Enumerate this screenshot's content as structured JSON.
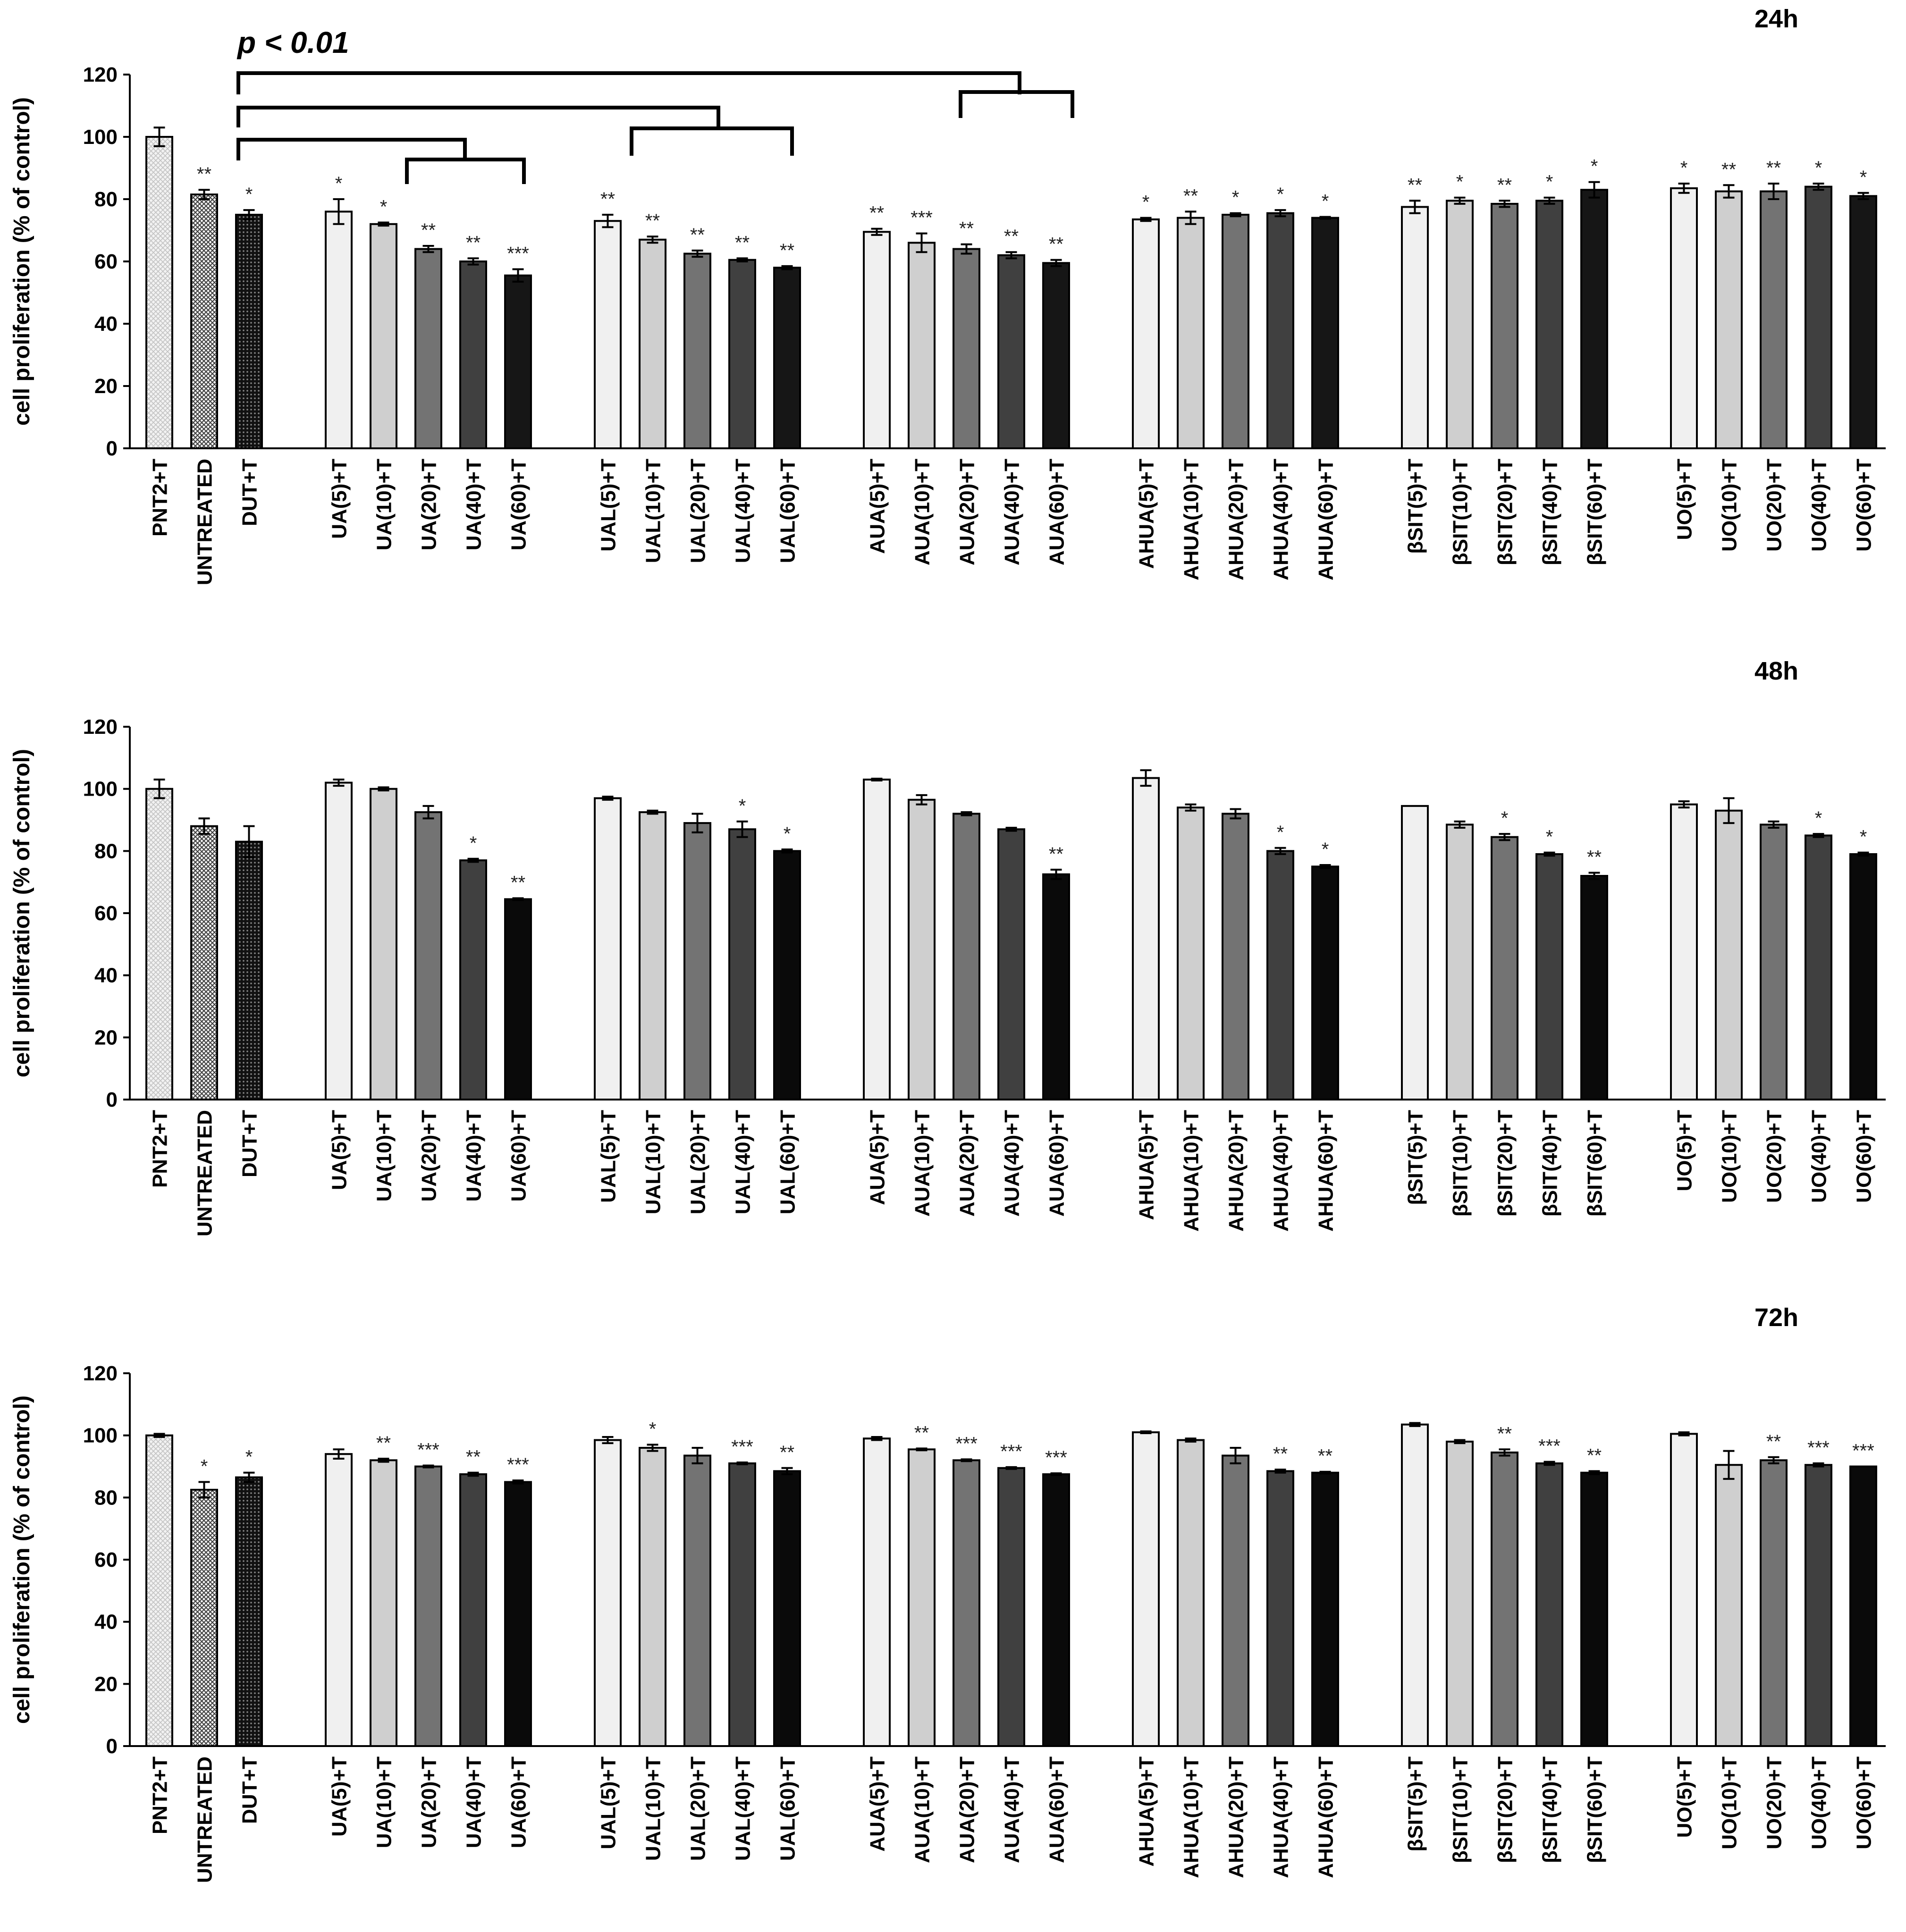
{
  "chart_data": [
    {
      "type": "bar",
      "title": "24h",
      "ylabel": "cell proliferation (% of control)",
      "ylim": [
        0,
        120
      ],
      "yticks": [
        "0",
        "20",
        "40",
        "60",
        "80",
        "100",
        "120"
      ],
      "categories": [
        "PNT2+T",
        "UNTREATED",
        "DUT+T",
        "UA(5)+T",
        "UA(10)+T",
        "UA(20)+T",
        "UA(40)+T",
        "UA(60)+T",
        "UAL(5)+T",
        "UAL(10)+T",
        "UAL(20)+T",
        "UAL(40)+T",
        "UAL(60)+T",
        "AUA(5)+T",
        "AUA(10)+T",
        "AUA(20)+T",
        "AUA(40)+T",
        "AUA(60)+T",
        "AHUA(5)+T",
        "AHUA(10)+T",
        "AHUA(20)+T",
        "AHUA(40)+T",
        "AHUA(60)+T",
        "βSIT(5)+T",
        "βSIT(10)+T",
        "βSIT(20)+T",
        "βSIT(40)+T",
        "βSIT(60)+T",
        "UO(5)+T",
        "UO(10)+T",
        "UO(20)+T",
        "UO(40)+T",
        "UO(60)+T"
      ],
      "values": [
        100,
        81.5,
        75,
        76,
        72,
        64,
        60,
        55.5,
        73,
        67,
        62.5,
        60.5,
        58,
        69.5,
        66,
        64,
        62,
        59.5,
        73.5,
        74,
        75,
        75.5,
        74,
        77.5,
        79.5,
        78.5,
        79.5,
        83,
        83.5,
        82.5,
        82.5,
        84,
        81
      ],
      "errors": [
        3,
        1.5,
        1.5,
        4,
        0.5,
        1,
        1,
        2,
        2,
        1,
        1,
        0.5,
        0.5,
        1,
        3,
        1.5,
        1,
        1,
        0.5,
        2,
        0.5,
        1,
        0.3,
        2,
        1,
        1,
        1,
        2.5,
        1.5,
        2,
        2.5,
        1,
        1
      ],
      "significance": [
        "",
        "**",
        "*",
        "*",
        "*",
        "**",
        "**",
        "***",
        "**",
        "**",
        "**",
        "**",
        "**",
        "**",
        "***",
        "**",
        "**",
        "**",
        "*",
        "**",
        "*",
        "*",
        "*",
        "**",
        "*",
        "**",
        "*",
        "*",
        "*",
        "**",
        "**",
        "*",
        "*"
      ],
      "annotation": "p < 0.01"
    },
    {
      "type": "bar",
      "title": "48h",
      "ylabel": "cell proliferation (% of control)",
      "ylim": [
        0,
        120
      ],
      "yticks": [
        "0",
        "20",
        "40",
        "60",
        "80",
        "100",
        "120"
      ],
      "categories": [
        "PNT2+T",
        "UNTREATED",
        "DUT+T",
        "UA(5)+T",
        "UA(10)+T",
        "UA(20)+T",
        "UA(40)+T",
        "UA(60)+T",
        "UAL(5)+T",
        "UAL(10)+T",
        "UAL(20)+T",
        "UAL(40)+T",
        "UAL(60)+T",
        "AUA(5)+T",
        "AUA(10)+T",
        "AUA(20)+T",
        "AUA(40)+T",
        "AUA(60)+T",
        "AHUA(5)+T",
        "AHUA(10)+T",
        "AHUA(20)+T",
        "AHUA(40)+T",
        "AHUA(60)+T",
        "βSIT(5)+T",
        "βSIT(10)+T",
        "βSIT(20)+T",
        "βSIT(40)+T",
        "βSIT(60)+T",
        "UO(5)+T",
        "UO(10)+T",
        "UO(20)+T",
        "UO(40)+T",
        "UO(60)+T"
      ],
      "values": [
        100,
        88,
        83,
        102,
        100,
        92.5,
        77,
        64.5,
        97,
        92.5,
        89,
        87,
        80,
        103,
        96.5,
        92,
        87,
        72.5,
        103.5,
        94,
        92,
        80,
        75,
        94.5,
        88.5,
        84.5,
        79,
        72,
        95,
        93,
        88.5,
        85,
        79
      ],
      "errors": [
        3,
        2.5,
        5,
        1,
        0.5,
        2,
        0.5,
        0.3,
        0.5,
        0.5,
        3,
        2.5,
        0.5,
        0.3,
        1.5,
        0.5,
        0.5,
        1.5,
        2.5,
        1,
        1.5,
        1,
        0.5,
        0,
        1,
        1,
        0.5,
        1,
        1,
        4,
        1,
        0.5,
        0.5
      ],
      "significance": [
        "",
        "",
        "",
        "",
        "",
        "",
        "*",
        "**",
        "",
        "",
        "",
        "*",
        "*",
        "",
        "",
        "",
        "",
        "**",
        "",
        "",
        "",
        "*",
        "*",
        "",
        "",
        "*",
        "*",
        "**",
        "",
        "",
        "",
        "*",
        "*"
      ]
    },
    {
      "type": "bar",
      "title": "72h",
      "ylabel": "cell proliferation (% of control)",
      "ylim": [
        0,
        120
      ],
      "yticks": [
        "0",
        "20",
        "40",
        "60",
        "80",
        "100",
        "120"
      ],
      "categories": [
        "PNT2+T",
        "UNTREATED",
        "DUT+T",
        "UA(5)+T",
        "UA(10)+T",
        "UA(20)+T",
        "UA(40)+T",
        "UA(60)+T",
        "UAL(5)+T",
        "UAL(10)+T",
        "UAL(20)+T",
        "UAL(40)+T",
        "UAL(60)+T",
        "AUA(5)+T",
        "AUA(10)+T",
        "AUA(20)+T",
        "AUA(40)+T",
        "AUA(60)+T",
        "AHUA(5)+T",
        "AHUA(10)+T",
        "AHUA(20)+T",
        "AHUA(40)+T",
        "AHUA(60)+T",
        "βSIT(5)+T",
        "βSIT(10)+T",
        "βSIT(20)+T",
        "βSIT(40)+T",
        "βSIT(60)+T",
        "UO(5)+T",
        "UO(10)+T",
        "UO(20)+T",
        "UO(40)+T",
        "UO(60)+T"
      ],
      "values": [
        100,
        82.5,
        86.5,
        94,
        92,
        90,
        87.5,
        85,
        98.5,
        96,
        93.5,
        91,
        88.5,
        99,
        95.5,
        92,
        89.5,
        87.5,
        101,
        98.5,
        93.5,
        88.5,
        88,
        103.5,
        98,
        94.5,
        91,
        88,
        100.5,
        90.5,
        92,
        90.5,
        90
      ],
      "errors": [
        0.5,
        2.5,
        1.5,
        1.5,
        0.5,
        0.3,
        0.5,
        0.5,
        1,
        1,
        2.5,
        0.3,
        1,
        0.5,
        0.3,
        0.3,
        0.3,
        0.3,
        0.3,
        0.5,
        2.5,
        0.5,
        0.3,
        0.5,
        0.5,
        1,
        0.5,
        0.5,
        0.5,
        4.5,
        1,
        0.5,
        0
      ],
      "significance": [
        "",
        "*",
        "*",
        "",
        "**",
        "***",
        "**",
        "***",
        "",
        "*",
        "",
        "***",
        "**",
        "",
        "**",
        "***",
        "***",
        "***",
        "",
        "",
        "",
        "**",
        "**",
        "",
        "",
        "**",
        "***",
        "**",
        "",
        "",
        "**",
        "***",
        "***"
      ]
    }
  ]
}
